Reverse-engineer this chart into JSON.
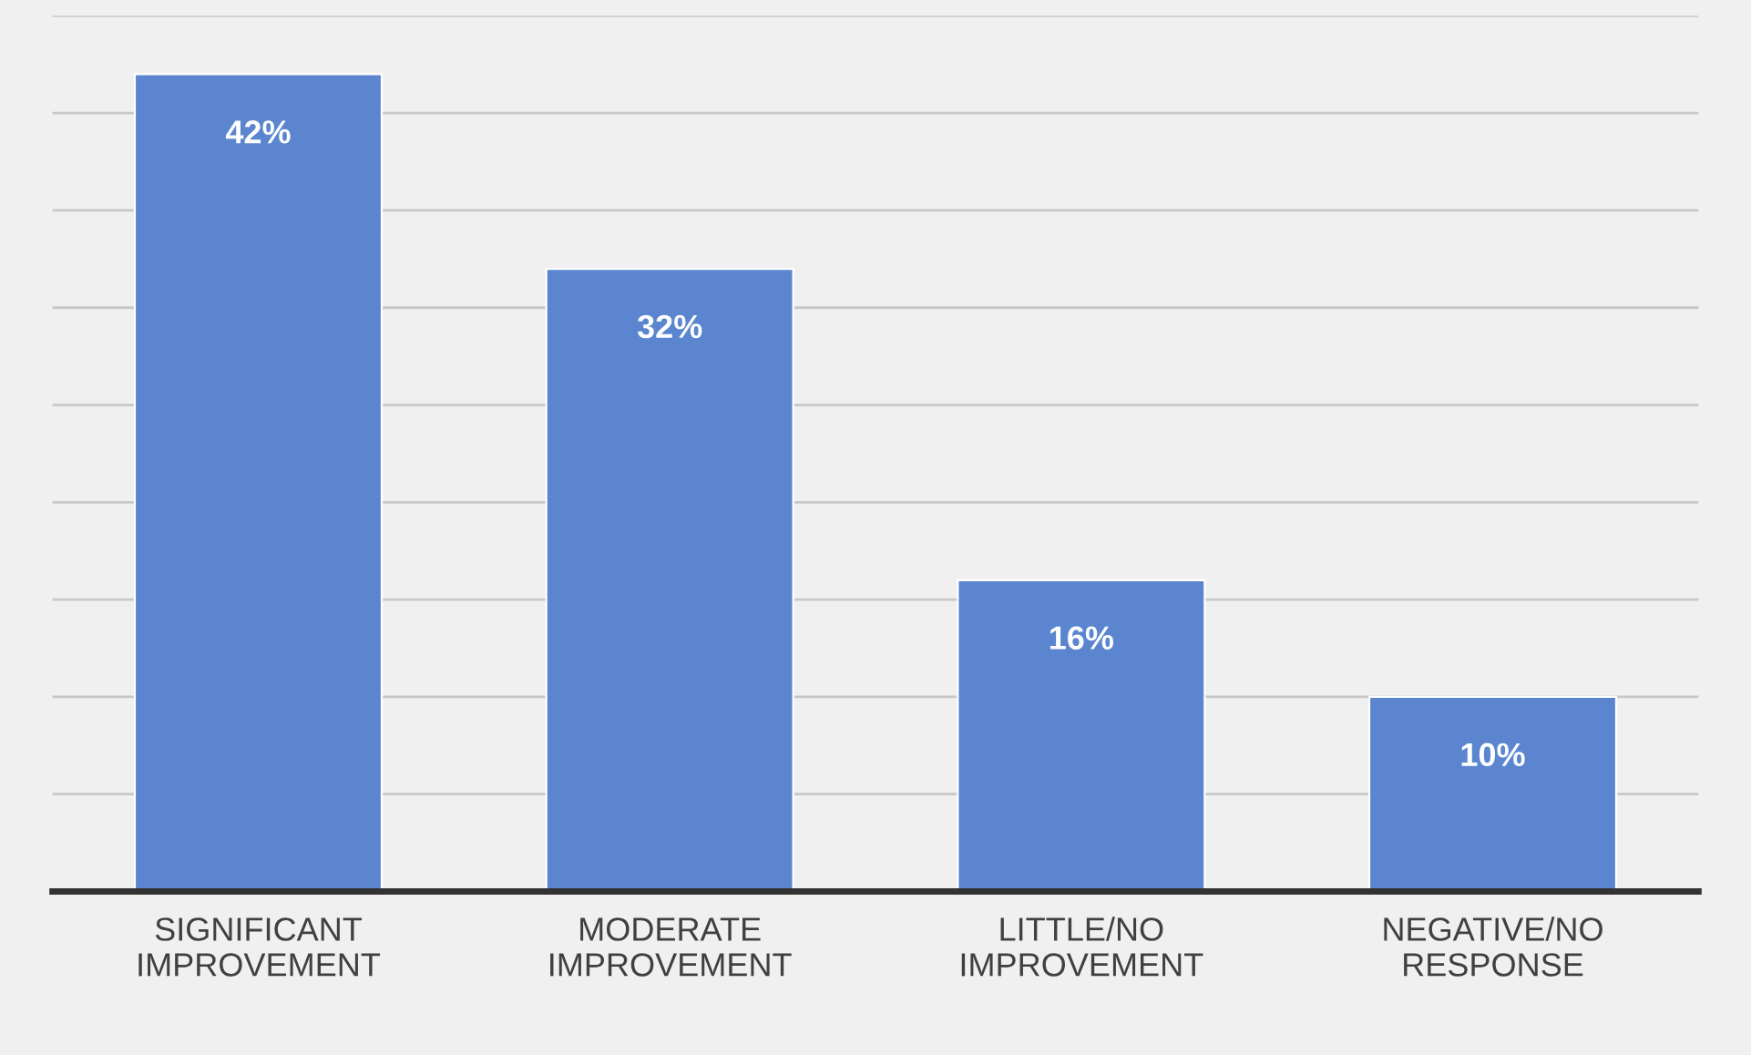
{
  "chart_data": {
    "type": "bar",
    "categories": [
      "SIGNIFICANT\nIMPROVEMENT",
      "MODERATE\nIMPROVEMENT",
      "LITTLE/NO\nIMPROVEMENT",
      "NEGATIVE/NO\nRESPONSE"
    ],
    "values": [
      42,
      32,
      16,
      10
    ],
    "value_labels": [
      "42%",
      "32%",
      "16%",
      "10%"
    ],
    "color": "#5b86cf",
    "ylim": [
      0,
      45
    ],
    "yticks": [
      {
        "value": 0,
        "label": null
      },
      {
        "value": 5,
        "label": null
      },
      {
        "value": 10,
        "label": null
      },
      {
        "value": 15,
        "label": null
      },
      {
        "value": 20,
        "label": null
      },
      {
        "value": 25,
        "label": null
      },
      {
        "value": 30,
        "label": null
      },
      {
        "value": 35,
        "label": null
      },
      {
        "value": 40,
        "label": null
      },
      {
        "value": 45,
        "label": null
      }
    ],
    "grid": "y",
    "tick_labels": "x"
  }
}
